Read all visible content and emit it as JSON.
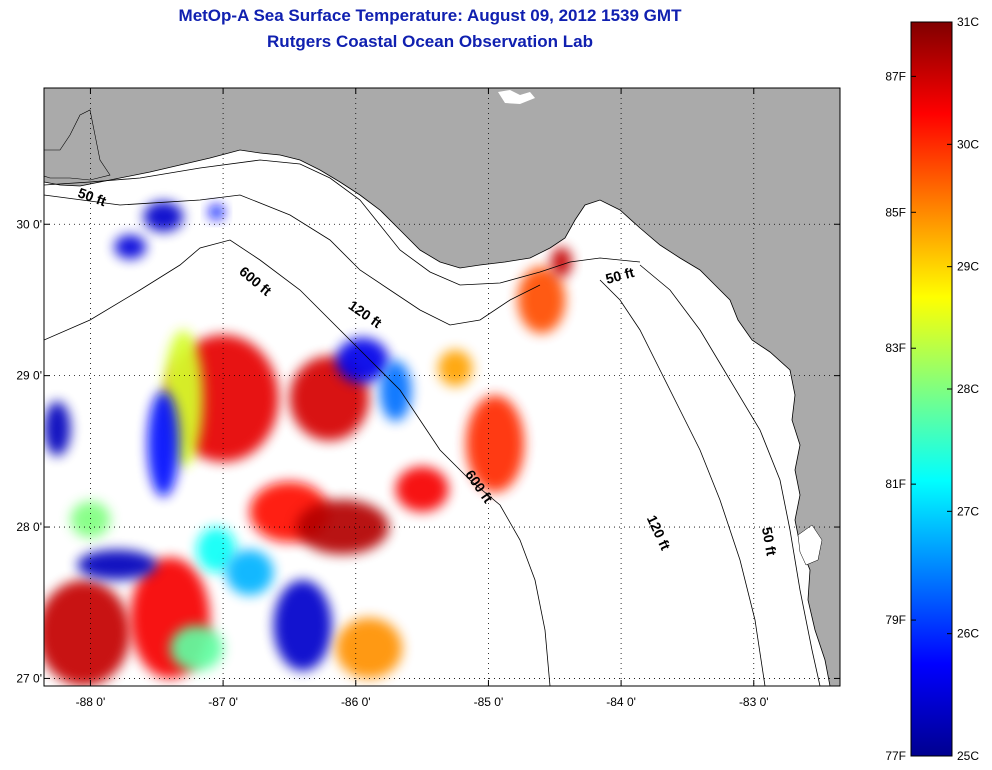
{
  "title": {
    "line1": "MetOp-A Sea Surface Temperature:  August 09, 2012 1539 GMT",
    "line2": "Rutgers Coastal Ocean Observation Lab"
  },
  "map": {
    "lon_range": [
      -88.35,
      -82.35
    ],
    "lat_range": [
      26.95,
      30.9
    ],
    "lon_ticks": [
      {
        "value": -88,
        "label": "-88 0'"
      },
      {
        "value": -87,
        "label": "-87 0'"
      },
      {
        "value": -86,
        "label": "-86 0'"
      },
      {
        "value": -85,
        "label": "-85 0'"
      },
      {
        "value": -84,
        "label": "-84 0'"
      },
      {
        "value": -83,
        "label": "-83 0'"
      }
    ],
    "lat_ticks": [
      {
        "value": 27,
        "label": "27 0'"
      },
      {
        "value": 28,
        "label": "28 0'"
      },
      {
        "value": 29,
        "label": "29 0'"
      },
      {
        "value": 30,
        "label": "30 0'"
      }
    ],
    "grid": "dotted",
    "land_color": "#aaaaaa",
    "no_data_color": "#ffffff",
    "contour_labels": [
      {
        "text": "50 ft",
        "lon": -88.0,
        "lat": 30.15,
        "angle": 20
      },
      {
        "text": "600 ft",
        "lon": -86.78,
        "lat": 29.6,
        "angle": 40
      },
      {
        "text": "120 ft",
        "lon": -85.95,
        "lat": 29.38,
        "angle": 35
      },
      {
        "text": "50 ft",
        "lon": -84.0,
        "lat": 29.63,
        "angle": -15
      },
      {
        "text": "600 ft",
        "lon": -85.1,
        "lat": 28.25,
        "angle": 55
      },
      {
        "text": "120 ft",
        "lon": -83.75,
        "lat": 27.95,
        "angle": 65
      },
      {
        "text": "50 ft",
        "lon": -82.92,
        "lat": 27.9,
        "angle": 80
      }
    ]
  },
  "colorbar": {
    "min_c": 25,
    "max_c": 31,
    "colors": [
      "#00008f",
      "#0000ff",
      "#0080ff",
      "#00ffff",
      "#80ff80",
      "#ffff00",
      "#ff8000",
      "#ff0000",
      "#800000"
    ],
    "celsius_labels": [
      {
        "value": 31,
        "label": "31C"
      },
      {
        "value": 30,
        "label": "30C"
      },
      {
        "value": 29,
        "label": "29C"
      },
      {
        "value": 28,
        "label": "28C"
      },
      {
        "value": 27,
        "label": "27C"
      },
      {
        "value": 26,
        "label": "26C"
      },
      {
        "value": 25,
        "label": "25C"
      }
    ],
    "fahrenheit_labels": [
      {
        "value": 87,
        "label": "87F"
      },
      {
        "value": 85,
        "label": "85F"
      },
      {
        "value": 83,
        "label": "83F"
      },
      {
        "value": 81,
        "label": "81F"
      },
      {
        "value": 79,
        "label": "79F"
      },
      {
        "value": 77,
        "label": "77F"
      }
    ]
  },
  "sst_patches": [
    {
      "lon": -87.7,
      "lat": 29.85,
      "rx": 0.12,
      "ry": 0.08,
      "t": 25.5
    },
    {
      "lon": -87.45,
      "lat": 30.05,
      "rx": 0.15,
      "ry": 0.1,
      "t": 25.4
    },
    {
      "lon": -87.05,
      "lat": 30.08,
      "rx": 0.06,
      "ry": 0.05,
      "t": 25.8
    },
    {
      "lon": -88.25,
      "lat": 28.65,
      "rx": 0.1,
      "ry": 0.18,
      "t": 25.3
    },
    {
      "lon": -87.0,
      "lat": 28.85,
      "rx": 0.42,
      "ry": 0.42,
      "t": 30.4
    },
    {
      "lon": -87.3,
      "lat": 28.85,
      "rx": 0.15,
      "ry": 0.45,
      "t": 28.5
    },
    {
      "lon": -87.45,
      "lat": 28.55,
      "rx": 0.12,
      "ry": 0.35,
      "t": 25.8
    },
    {
      "lon": -86.2,
      "lat": 28.85,
      "rx": 0.3,
      "ry": 0.28,
      "t": 30.5
    },
    {
      "lon": -85.95,
      "lat": 29.1,
      "rx": 0.2,
      "ry": 0.15,
      "t": 25.6
    },
    {
      "lon": -85.7,
      "lat": 28.9,
      "rx": 0.12,
      "ry": 0.2,
      "t": 26.4
    },
    {
      "lon": -86.5,
      "lat": 28.1,
      "rx": 0.3,
      "ry": 0.2,
      "t": 30.2
    },
    {
      "lon": -86.1,
      "lat": 28.0,
      "rx": 0.35,
      "ry": 0.18,
      "t": 30.7
    },
    {
      "lon": -85.5,
      "lat": 28.25,
      "rx": 0.2,
      "ry": 0.15,
      "t": 30.3
    },
    {
      "lon": -84.95,
      "lat": 28.55,
      "rx": 0.22,
      "ry": 0.32,
      "t": 30.0
    },
    {
      "lon": -85.25,
      "lat": 29.05,
      "rx": 0.13,
      "ry": 0.12,
      "t": 29.3
    },
    {
      "lon": -84.6,
      "lat": 29.5,
      "rx": 0.18,
      "ry": 0.22,
      "t": 29.8
    },
    {
      "lon": -84.45,
      "lat": 29.75,
      "rx": 0.08,
      "ry": 0.1,
      "t": 30.6
    },
    {
      "lon": -88.05,
      "lat": 27.3,
      "rx": 0.35,
      "ry": 0.35,
      "t": 30.6
    },
    {
      "lon": -87.4,
      "lat": 27.4,
      "rx": 0.3,
      "ry": 0.4,
      "t": 30.3
    },
    {
      "lon": -87.2,
      "lat": 27.2,
      "rx": 0.2,
      "ry": 0.15,
      "t": 27.8
    },
    {
      "lon": -87.8,
      "lat": 27.75,
      "rx": 0.3,
      "ry": 0.1,
      "t": 25.3
    },
    {
      "lon": -86.4,
      "lat": 27.35,
      "rx": 0.22,
      "ry": 0.3,
      "t": 25.4
    },
    {
      "lon": -85.9,
      "lat": 27.2,
      "rx": 0.25,
      "ry": 0.2,
      "t": 29.4
    },
    {
      "lon": -88.0,
      "lat": 28.05,
      "rx": 0.15,
      "ry": 0.12,
      "t": 28.0
    },
    {
      "lon": -87.05,
      "lat": 27.85,
      "rx": 0.15,
      "ry": 0.15,
      "t": 27.3
    },
    {
      "lon": -86.8,
      "lat": 27.7,
      "rx": 0.18,
      "ry": 0.15,
      "t": 26.8
    }
  ]
}
